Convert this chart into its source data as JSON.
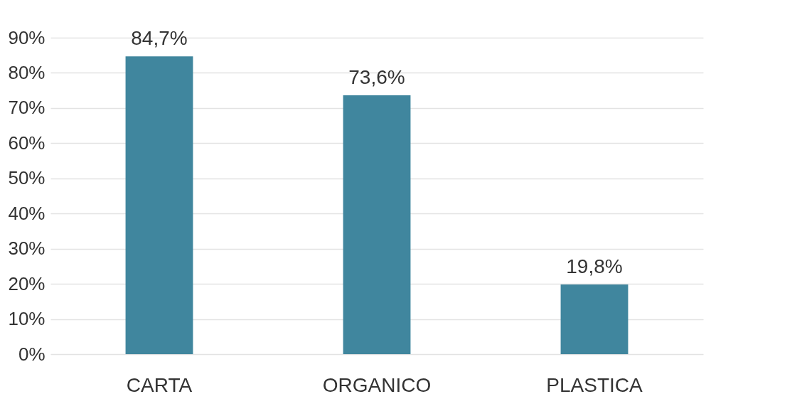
{
  "chart_data": {
    "type": "bar",
    "categories": [
      "CARTA",
      "ORGANICO",
      "PLASTICA"
    ],
    "series": [
      {
        "color": "#40869e",
        "values": [
          84.7,
          73.6,
          19.8
        ]
      }
    ],
    "value_labels": [
      "84,7%",
      "73,6%",
      "19,8%"
    ],
    "ylim": [
      0,
      90
    ],
    "yticks": [
      {
        "value": 0,
        "label": "0%"
      },
      {
        "value": 10,
        "label": "10%"
      },
      {
        "value": 20,
        "label": "20%"
      },
      {
        "value": 30,
        "label": "30%"
      },
      {
        "value": 40,
        "label": "40%"
      },
      {
        "value": 50,
        "label": "50%"
      },
      {
        "value": 60,
        "label": "60%"
      },
      {
        "value": 70,
        "label": "70%"
      },
      {
        "value": 80,
        "label": "80%"
      },
      {
        "value": 90,
        "label": "90%"
      }
    ],
    "grid": "y"
  }
}
